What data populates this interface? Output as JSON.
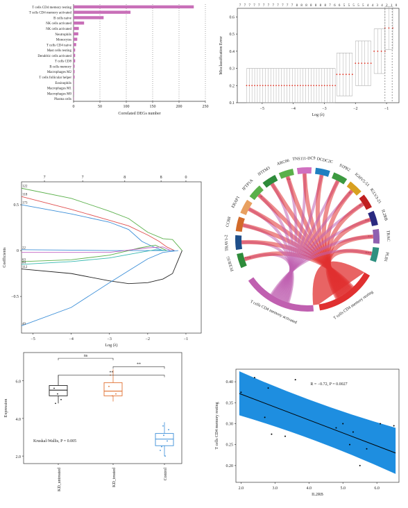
{
  "chart_data": [
    {
      "type": "bar",
      "orientation": "horizontal",
      "xlabel": "Correlated DEGs number",
      "xlim": [
        0,
        250
      ],
      "xticks": [
        0,
        50,
        100,
        150,
        200,
        250
      ],
      "categories": [
        "T cells CD4 memory resting",
        "T cells CD4 memory activated",
        "B cells naive",
        "NK cells activated",
        "NK cells activated",
        "Neutrophils",
        "Monocytes",
        "T cells CD4 naive",
        "Mast cells resting",
        "Dendritic cells activated",
        "T cells CD8",
        "B cells memory",
        "Macrophages M2",
        "T cells follicular helper",
        "Eosinophils",
        "Macrophages M1",
        "Macrophages M0",
        "Plasma cells"
      ],
      "values": [
        228,
        108,
        57,
        20,
        10,
        9,
        7,
        5,
        3,
        3,
        3,
        2,
        2,
        2,
        1,
        1,
        1,
        0
      ],
      "bar_color": "#c86fb8",
      "grid": "dotted vertical"
    },
    {
      "type": "line",
      "subtype": "cv-error-bars",
      "xlabel": "Log (λ)",
      "ylabel": "Misclassification Error",
      "xlim": [
        -5.8,
        -0.6
      ],
      "ylim": [
        0.1,
        0.65
      ],
      "xticks": [
        -5,
        -4,
        -3,
        -2,
        -1
      ],
      "yticks": [
        0.1,
        0.2,
        0.3,
        0.4,
        0.5,
        0.6
      ],
      "top_labels": [
        "7",
        "7",
        "7",
        "7",
        "7",
        "7",
        "7",
        "7",
        "7",
        "7",
        "7",
        "7",
        "8",
        "8",
        "8",
        "8",
        "8",
        "8",
        "8",
        "7",
        "6",
        "6",
        "5",
        "5",
        "5",
        "5",
        "5",
        "4",
        "4",
        "3",
        "4",
        "2",
        "1",
        "0"
      ],
      "segments": [
        {
          "x_from": -5.5,
          "x_to": -2.65,
          "mean": 0.2,
          "lower": 0.1,
          "upper": 0.3
        },
        {
          "x_from": -2.6,
          "x_to": -2.1,
          "mean": 0.265,
          "lower": 0.14,
          "upper": 0.39
        },
        {
          "x_from": -2.0,
          "x_to": -1.5,
          "mean": 0.33,
          "lower": 0.2,
          "upper": 0.46
        },
        {
          "x_from": -1.4,
          "x_to": -1.05,
          "mean": 0.4,
          "lower": 0.27,
          "upper": 0.53
        },
        {
          "x_from": -1.05,
          "x_to": -0.8,
          "mean": 0.535,
          "lower": 0.41,
          "upper": 0.66
        }
      ],
      "point_color": "#e03020"
    },
    {
      "type": "line",
      "subtype": "lasso-path",
      "xlabel": "Log (λ)",
      "ylabel": "Coefficients",
      "xlim": [
        -5.3,
        -0.6
      ],
      "ylim": [
        -0.9,
        0.75
      ],
      "xticks": [
        -5,
        -4,
        -3,
        -2,
        -1
      ],
      "yticks": [
        0.5,
        0,
        -0.5
      ],
      "top_labels": [
        "7",
        "7",
        "8",
        "8",
        "0"
      ],
      "series": [
        {
          "name": "122",
          "color": "#5ab04a",
          "x": [
            -5.3,
            -4,
            -3,
            -2.5,
            -2,
            -1.6,
            -1.35,
            -1.1
          ],
          "y": [
            0.68,
            0.57,
            0.43,
            0.35,
            0.2,
            0.13,
            0.12,
            0
          ]
        },
        {
          "name": "118",
          "color": "#e05050",
          "x": [
            -5.3,
            -4,
            -3,
            -2.5,
            -2,
            -1.7,
            -1.5,
            -1.3
          ],
          "y": [
            0.59,
            0.45,
            0.33,
            0.27,
            0.17,
            0.1,
            0.04,
            0
          ]
        },
        {
          "name": "173",
          "color": "#3c8fd8",
          "x": [
            -5.3,
            -4,
            -3,
            -2.5,
            -2.15,
            -1.9,
            -1.6
          ],
          "y": [
            0.5,
            0.4,
            0.31,
            0.23,
            0.1,
            0.05,
            0
          ]
        },
        {
          "name": "22",
          "color": "#3c8fd8",
          "x": [
            -5.3,
            -4,
            -3,
            -2,
            -1.3
          ],
          "y": [
            0.01,
            0.005,
            0,
            0,
            0
          ]
        },
        {
          "name": "63",
          "color": "#5ab04a",
          "x": [
            -5.3,
            -4,
            -3,
            -2.2,
            -1.8,
            -1.5
          ],
          "y": [
            -0.12,
            -0.1,
            -0.05,
            0.03,
            0.06,
            0
          ]
        },
        {
          "name": "84",
          "color": "#36b8b0",
          "x": [
            -5.3,
            -4,
            -3,
            -2.2,
            -1.8,
            -1.5
          ],
          "y": [
            -0.15,
            -0.12,
            -0.08,
            -0.02,
            0.01,
            0
          ]
        },
        {
          "name": "112",
          "color": "#222222",
          "x": [
            -5.3,
            -4,
            -3,
            -2.5,
            -2,
            -1.6,
            -1.35,
            -1.2,
            -1.1
          ],
          "y": [
            -0.2,
            -0.25,
            -0.33,
            -0.36,
            -0.35,
            -0.31,
            -0.25,
            -0.1,
            0
          ]
        },
        {
          "name": "",
          "color": "#c060c0",
          "x": [
            -5.3,
            -3,
            -2,
            -1.6,
            -1.4
          ],
          "y": [
            -0.02,
            -0.02,
            0.03,
            0.04,
            0
          ]
        },
        {
          "name": "49",
          "color": "#3c8fd8",
          "x": [
            -5.3,
            -4,
            -3,
            -2.5,
            -2,
            -1.6,
            -1.2
          ],
          "y": [
            -0.82,
            -0.62,
            -0.35,
            -0.22,
            -0.09,
            -0.02,
            0
          ]
        }
      ]
    },
    {
      "type": "chord",
      "genes": [
        "FCER1G",
        "TRAV1-2",
        "CCR8",
        "ERAP1",
        "IFTP1A",
        "IFITM3",
        "ARC06",
        "TNS111-DC9",
        "DCDC2C",
        "S1PR2",
        "IGHV5-51",
        "IGLV3-21",
        "IL2RB",
        "TRAC",
        "PLB1"
      ],
      "gene_colors": [
        "#2e8b3a",
        "#1f4f8a",
        "#d26a2a",
        "#e8a060",
        "#5ab04a",
        "#2e8b3a",
        "#5ab04a",
        "#d070c0",
        "#1f7fc0",
        "#3c9a40",
        "#d8a020",
        "#c02020",
        "#2a2a80",
        "#8f60b0",
        "#2e9080"
      ],
      "cells": [
        "T cells CD4 memory activated",
        "T cells CD4 memory resting"
      ],
      "cell_colors": [
        "#c060b0",
        "#e03030"
      ],
      "significance": [
        "***",
        "",
        "",
        "",
        "*",
        "",
        "**",
        "",
        "",
        "",
        "*",
        "*",
        "**",
        "**",
        "***"
      ]
    },
    {
      "type": "box",
      "ylabel": "Expression",
      "ylim": [
        1.6,
        7.5
      ],
      "yticks": [
        2.0,
        4.0,
        6.0
      ],
      "categories": [
        "KD_untreated",
        "KD_treated",
        "Control"
      ],
      "colors": [
        "#222222",
        "#e07030",
        "#3c8fd8"
      ],
      "boxes": [
        {
          "min": 4.8,
          "q1": 5.2,
          "median": 5.5,
          "q3": 5.75,
          "max": 6.3,
          "points": [
            5.6,
            5.3,
            5.0,
            4.8
          ]
        },
        {
          "min": 4.9,
          "q1": 5.2,
          "median": 5.45,
          "q3": 5.9,
          "max": 6.6,
          "points": [
            5.7,
            5.2,
            5.3,
            6.3
          ]
        },
        {
          "min": 2.0,
          "q1": 2.55,
          "median": 2.9,
          "q3": 3.2,
          "max": 3.8,
          "points": [
            2.3,
            3.1,
            2.8,
            2.5,
            2.0,
            3.4,
            3.6
          ]
        }
      ],
      "comparisons": [
        {
          "pair": [
            "KD_untreated",
            "KD_treated"
          ],
          "label": "ns"
        },
        {
          "pair": [
            "KD_untreated",
            "Control"
          ],
          "label": "**"
        },
        {
          "pair": [
            "KD_treated",
            "Control"
          ],
          "label": "**"
        }
      ],
      "annotation": "Kruskal-Wallis, P = 0.005"
    },
    {
      "type": "scatter",
      "xlabel": "IL2RB",
      "ylabel": "T cells CD4 memory resting",
      "xlim": [
        1.85,
        6.65
      ],
      "ylim": [
        0.16,
        0.43
      ],
      "xticks": [
        2.0,
        3.0,
        4.0,
        5.0,
        6.0
      ],
      "yticks": [
        0.2,
        0.25,
        0.3,
        0.35,
        0.4
      ],
      "points": [
        [
          2.0,
          0.375
        ],
        [
          2.4,
          0.41
        ],
        [
          2.7,
          0.315
        ],
        [
          2.8,
          0.385
        ],
        [
          2.9,
          0.275
        ],
        [
          3.3,
          0.27
        ],
        [
          3.6,
          0.405
        ],
        [
          4.8,
          0.29
        ],
        [
          5.0,
          0.3
        ],
        [
          5.2,
          0.25
        ],
        [
          5.3,
          0.28
        ],
        [
          5.5,
          0.2
        ],
        [
          5.7,
          0.24
        ],
        [
          6.1,
          0.3
        ],
        [
          6.5,
          0.295
        ]
      ],
      "fit": {
        "x": [
          1.95,
          6.55
        ],
        "y": [
          0.372,
          0.23
        ]
      },
      "ci_upper": [
        0.425,
        0.29
      ],
      "ci_lower": [
        0.32,
        0.18
      ],
      "band_color": "#1e8ee0",
      "annotation": "R = −0.72, P = 0.0027"
    }
  ]
}
